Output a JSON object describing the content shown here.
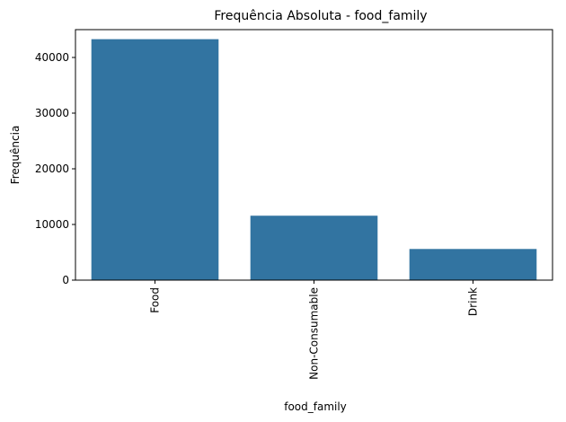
{
  "chart_data": {
    "type": "bar",
    "title": "Frequência Absoluta - food_family",
    "xlabel": "food_family",
    "ylabel": "Frequência",
    "categories": [
      "Food",
      "Non-Consumable",
      "Drink"
    ],
    "values": [
      43284,
      11573,
      5597
    ],
    "ylim": [
      0,
      45000
    ],
    "yticks": [
      0,
      10000,
      20000,
      30000,
      40000
    ],
    "ytick_labels": [
      "0",
      "10000",
      "20000",
      "30000",
      "40000"
    ],
    "bar_color": "#3274a1",
    "grid": false,
    "x_tick_rotation": "vertical"
  }
}
